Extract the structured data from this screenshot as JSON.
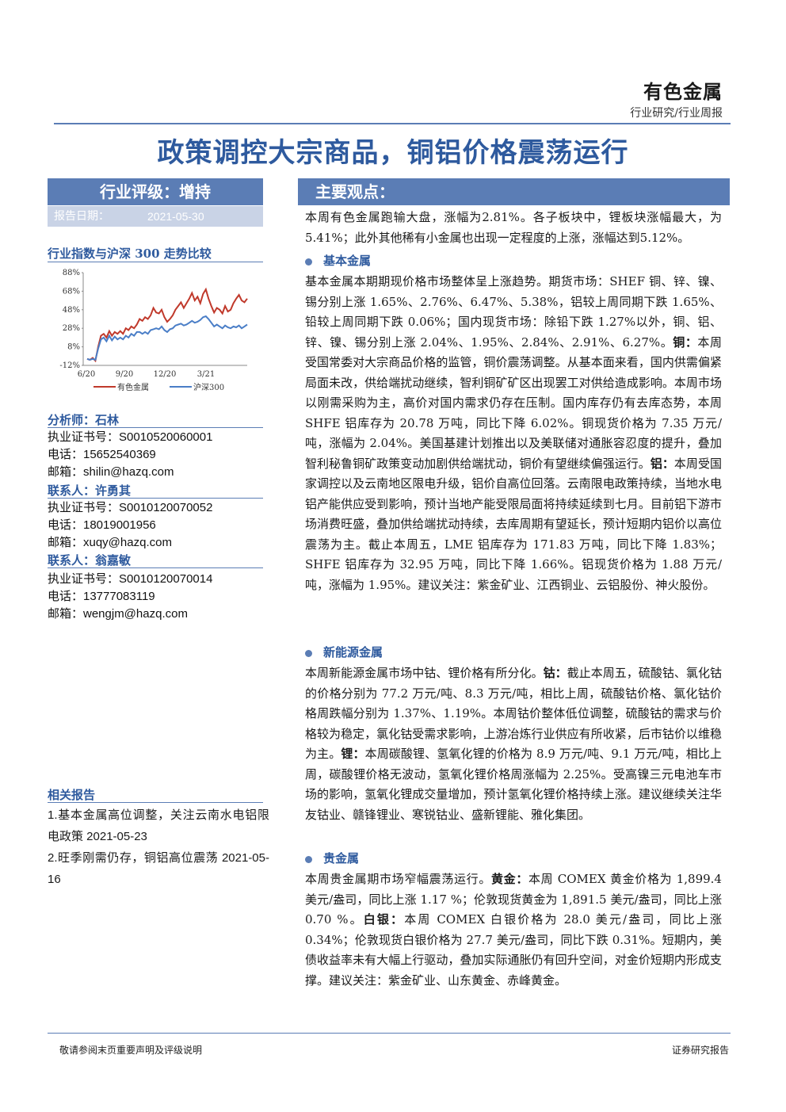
{
  "header": {
    "sector": "有色金属",
    "subtitle": "行业研究/行业周报",
    "title": "政策调控大宗商品，铜铝价格震荡运行"
  },
  "sidebar": {
    "rating": "行业评级：增持",
    "date_label": "报告日期：",
    "date_value": "2021-05-30",
    "chart_title": "行业指数与沪深 300 走势比较",
    "analyst_label": "分析师：石林",
    "analyst_lines": [
      "执业证书号：S0010520060001",
      "电话：15652540369",
      "邮箱：shilin@hazq.com"
    ],
    "contact1_label": "联系人：许勇其",
    "contact1_lines": [
      "执业证书号：S0010120070052",
      "电话：18019001956",
      "邮箱：xuqy@hazq.com"
    ],
    "contact2_label": "联系人：翁嘉敏",
    "contact2_lines": [
      "执业证书号：S0010120070014",
      "电话：13777083119",
      "邮箱：wengjm@hazq.com"
    ],
    "related_title": "相关报告",
    "related": [
      "1.基本金属高位调整，关注云南水电铝限电政策 2021-05-23",
      "2.旺季刚需仍存，铜铝高位震荡 2021-05-16"
    ]
  },
  "chart_data": {
    "type": "line",
    "x_ticks": [
      "6/20",
      "9/20",
      "12/20",
      "3/21"
    ],
    "y_ticks": [
      "88%",
      "68%",
      "48%",
      "28%",
      "8%",
      "-12%"
    ],
    "ylim": [
      -12,
      88
    ],
    "series": [
      {
        "name": "有色金属",
        "color": "#c0392b",
        "values": [
          -5,
          -6,
          -4,
          -7,
          8,
          20,
          22,
          18,
          25,
          20,
          24,
          22,
          25,
          22,
          28,
          26,
          30,
          28,
          32,
          38,
          36,
          40,
          38,
          42,
          50,
          45,
          44,
          48,
          40,
          35,
          38,
          42,
          48,
          52,
          56,
          50,
          55,
          60,
          66,
          58,
          62,
          55,
          65,
          70,
          60,
          52,
          45,
          50,
          48,
          44,
          52,
          46,
          48,
          55,
          60,
          64,
          58,
          56,
          60
        ]
      },
      {
        "name": "沪深300",
        "color": "#4a7ec7",
        "values": [
          -5,
          -6,
          -5,
          -6,
          6,
          16,
          18,
          14,
          20,
          15,
          19,
          16,
          18,
          16,
          20,
          18,
          22,
          20,
          24,
          24,
          22,
          24,
          22,
          26,
          27,
          28,
          27,
          30,
          26,
          24,
          27,
          28,
          31,
          32,
          33,
          31,
          32,
          34,
          36,
          34,
          35,
          37,
          40,
          41,
          38,
          34,
          30,
          32,
          30,
          28,
          31,
          29,
          28,
          30,
          29,
          31,
          28,
          30,
          32
        ]
      }
    ]
  },
  "main": {
    "points_title": "主要观点：",
    "intro": "本周有色金属跑输大盘，涨幅为2.81%。各子板块中，锂板块涨幅最大，为5.41%；此外其他稀有小金属也出现一定程度的上涨，涨幅达到5.12%。",
    "sec1_title": "基本金属",
    "sec1_p1": "基本金属本期期现价格市场整体呈上涨趋势。期货市场：SHEF 铜、锌、镍、锡分别上涨 1.65%、2.76%、6.47%、5.38%，铝较上周同期下跌 1.65%、铅较上周同期下跌 0.06%；国内现货市场：除铅下跌 1.27%以外，铜、铝、锌、镍、锡分别上涨 2.04%、1.95%、2.84%、2.91%、6.27%。",
    "sec1_cu_kw": "铜：",
    "sec1_cu": "本周受国常委对大宗商品价格的监管，铜价震荡调整。从基本面来看，国内供需偏紧局面未改，供给端扰动继续，智利铜矿矿区出现罢工对供给造成影响。本周市场以刚需采购为主，高价对国内需求仍存在压制。国内库存仍有去库态势，本周 SHFE 铝库存为 20.78 万吨，同比下降 6.02%。铜现货价格为 7.35 万元/吨，涨幅为 2.04%。美国基建计划推出以及美联储对通胀容忍度的提升，叠加智利秘鲁铜矿政策变动加剧供给端扰动，铜价有望继续偏强运行。",
    "sec1_al_kw": "铝：",
    "sec1_al": "本周受国家调控以及云南地区限电升级，铝价自高位回落。云南限电政策持续，当地水电铝产能供应受到影响，预计当地产能受限局面将持续延续到七月。目前铝下游市场消费旺盛，叠加供给端扰动持续，去库周期有望延长，预计短期内铝价以高位震荡为主。截止本周五，LME 铝库存为 171.83 万吨，同比下降 1.83%；SHFE 铝库存为 32.95 万吨，同比下降 1.66%。铝现货价格为 1.88 万元/吨，涨幅为 1.95%。建议关注：紫金矿业、江西铜业、云铝股份、神火股份。",
    "sec2_title": "新能源金属",
    "sec2_p1": "本周新能源金属市场中钴、锂价格有所分化。",
    "sec2_co_kw": "钴：",
    "sec2_co": "截止本周五，硫酸钴、氯化钴的价格分别为 77.2 万元/吨、8.3 万元/吨，相比上周，硫酸钴价格、氯化钴价格周跌幅分别为 1.37%、1.19%。本周钴价整体低位调整，硫酸钴的需求与价格较为稳定，氯化钴受需求影响，上游冶炼行业供应有所收紧，后市钴价以维稳为主。",
    "sec2_li_kw": "锂：",
    "sec2_li": "本周碳酸锂、氢氧化锂的价格为 8.9 万元/吨、9.1 万元/吨，相比上周，碳酸锂价格无波动，氢氧化锂价格周涨幅为 2.25%。受高镍三元电池车市场的影响，氢氧化锂成交量增加，预计氢氧化锂价格持续上涨。建议继续关注华友钴业、赣锋锂业、寒锐钴业、盛新锂能、雅化集团。",
    "sec3_title": "贵金属",
    "sec3_p1": "本周贵金属期市场窄幅震荡运行。",
    "sec3_au_kw": "黄金：",
    "sec3_au": "本周 COMEX 黄金价格为 1,899.4 美元/盎司，同比上涨 1.17 %；伦敦现货黄金为 1,891.5 美元/盎司，同比上涨 0.70 %。",
    "sec3_ag_kw": "白银：",
    "sec3_ag": "本周 COMEX 白银价格为 28.0 美元/盎司，同比上涨 0.34%；伦敦现货白银价格为 27.7 美元/盎司，同比下跌 0.31%。短期内，美债收益率未有大幅上行驱动，叠加实际通胀仍有回升空间，对金价短期内形成支撑。建议关注：紫金矿业、山东黄金、赤峰黄金。"
  },
  "footer": {
    "left": "敬请参阅末页重要声明及评级说明",
    "right": "证券研究报告"
  }
}
